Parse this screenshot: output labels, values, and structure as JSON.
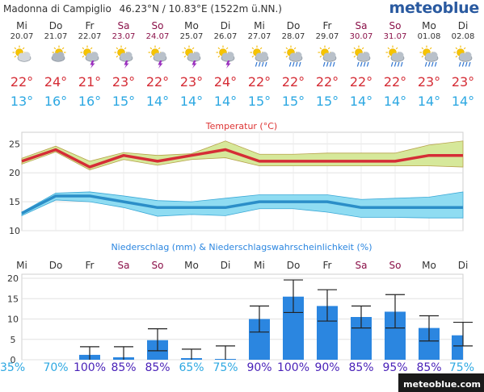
{
  "header": {
    "location": "Madonna di Campiglio",
    "coords": "46.23°N / 10.83°E (1522m ü.NN.)",
    "brand": "meteoblue"
  },
  "days": [
    {
      "dow": "Mi",
      "date": "20.07",
      "weekend": false,
      "icon": "partly-cloudy-sun-icon",
      "tmax": "22°",
      "tmin": "13°",
      "prob": "35%"
    },
    {
      "dow": "Do",
      "date": "21.07",
      "weekend": false,
      "icon": "partly-cloudy-icon",
      "tmax": "24°",
      "tmin": "16°",
      "prob": "70%"
    },
    {
      "dow": "Fr",
      "date": "22.07",
      "weekend": false,
      "icon": "thunderstorm-sun-icon",
      "tmax": "21°",
      "tmin": "16°",
      "prob": "100%"
    },
    {
      "dow": "Sa",
      "date": "23.07",
      "weekend": true,
      "icon": "thunderstorm-sun-icon",
      "tmax": "23°",
      "tmin": "15°",
      "prob": "85%"
    },
    {
      "dow": "So",
      "date": "24.07",
      "weekend": true,
      "icon": "thunderstorm-sun-icon",
      "tmax": "22°",
      "tmin": "14°",
      "prob": "85%"
    },
    {
      "dow": "Mo",
      "date": "25.07",
      "weekend": false,
      "icon": "thunderstorm-sun-icon",
      "tmax": "23°",
      "tmin": "14°",
      "prob": "65%"
    },
    {
      "dow": "Di",
      "date": "26.07",
      "weekend": false,
      "icon": "thunderstorm-sun-icon",
      "tmax": "24°",
      "tmin": "14°",
      "prob": "75%"
    },
    {
      "dow": "Mi",
      "date": "27.07",
      "weekend": false,
      "icon": "rain-shower-sun-icon",
      "tmax": "22°",
      "tmin": "15°",
      "prob": "90%"
    },
    {
      "dow": "Do",
      "date": "28.07",
      "weekend": false,
      "icon": "rain-shower-sun-icon",
      "tmax": "22°",
      "tmin": "15°",
      "prob": "100%"
    },
    {
      "dow": "Fr",
      "date": "29.07",
      "weekend": false,
      "icon": "rain-shower-sun-icon",
      "tmax": "22°",
      "tmin": "15°",
      "prob": "90%"
    },
    {
      "dow": "Sa",
      "date": "30.07",
      "weekend": true,
      "icon": "rain-shower-sun-icon",
      "tmax": "22°",
      "tmin": "14°",
      "prob": "85%"
    },
    {
      "dow": "So",
      "date": "31.07",
      "weekend": true,
      "icon": "rain-shower-sun-icon",
      "tmax": "22°",
      "tmin": "14°",
      "prob": "95%"
    },
    {
      "dow": "Mo",
      "date": "01.08",
      "weekend": false,
      "icon": "rain-shower-sun-icon",
      "tmax": "23°",
      "tmin": "14°",
      "prob": "85%"
    },
    {
      "dow": "Di",
      "date": "02.08",
      "weekend": false,
      "icon": "rain-shower-sun-icon",
      "tmax": "23°",
      "tmin": "14°",
      "prob": "75%"
    }
  ],
  "colors": {
    "weekday": "#333333",
    "weekend": "#8a1048",
    "tmax": "#d52d36",
    "tmin": "#2da8e2",
    "tmax_band": "#d6e89a",
    "tmin_band": "#8fdcf2",
    "tmin_line": "#2b8ec8",
    "precip_bar": "#2b86e0",
    "precip_title": "#2b86e0",
    "prob_low": "#2da8e2",
    "prob_high": "#4a22b8"
  },
  "chart_data": [
    {
      "type": "line",
      "title": "Temperatur (°C)",
      "x": [
        "20.07",
        "21.07",
        "22.07",
        "23.07",
        "24.07",
        "25.07",
        "26.07",
        "27.07",
        "28.07",
        "29.07",
        "30.07",
        "31.07",
        "01.08",
        "02.08"
      ],
      "ylim": [
        10,
        27
      ],
      "yticks": [
        10,
        15,
        20,
        25
      ],
      "grid": true,
      "series": [
        {
          "key": "tmax",
          "values": [
            22,
            24,
            21,
            23,
            22,
            23,
            24,
            22,
            22,
            22,
            22,
            22,
            23,
            23
          ],
          "band_low": [
            21.5,
            23.6,
            20.5,
            22.3,
            21.3,
            22.3,
            22.6,
            21.2,
            21.2,
            21.2,
            21.2,
            21.2,
            21.2,
            21
          ],
          "band_high": [
            22.5,
            24.6,
            22,
            23.5,
            23,
            23.3,
            25.5,
            23.2,
            23.2,
            23.4,
            23.4,
            23.4,
            24.8,
            25.5
          ]
        },
        {
          "key": "tmin",
          "values": [
            13,
            16,
            16,
            15,
            14,
            14,
            14,
            15,
            15,
            15,
            14,
            14,
            14,
            14
          ],
          "band_low": [
            12.6,
            15.3,
            15,
            14,
            12.5,
            12.8,
            12.6,
            13.8,
            13.8,
            13.2,
            12.3,
            12.3,
            12.2,
            12.2
          ],
          "band_high": [
            13.2,
            16.5,
            16.7,
            16,
            15.2,
            15,
            15.6,
            16.2,
            16.2,
            16.2,
            15.4,
            15.6,
            15.8,
            16.7
          ]
        }
      ]
    },
    {
      "type": "bar",
      "title": "Niederschlag (mm) & Niederschlagswahrscheinlichkeit (%)",
      "categories": [
        "Mi",
        "Do",
        "Fr",
        "Sa",
        "So",
        "Mo",
        "Di",
        "Mi",
        "Do",
        "Fr",
        "Sa",
        "So",
        "Mo",
        "Di"
      ],
      "values": [
        0,
        0,
        1.2,
        0.6,
        4.8,
        0.4,
        0.2,
        10,
        15.5,
        13.2,
        10.5,
        11.8,
        7.8,
        6
      ],
      "err_low": [
        0,
        0,
        0,
        0,
        2.2,
        0,
        0,
        6.8,
        11.6,
        9.5,
        7.8,
        7.8,
        4.6,
        3.4
      ],
      "err_high": [
        0,
        0,
        3.2,
        3.2,
        7.6,
        2.6,
        3.4,
        13.2,
        19.6,
        17.2,
        13.2,
        16,
        10.8,
        9.2
      ],
      "probabilities": [
        35,
        70,
        100,
        85,
        85,
        65,
        75,
        90,
        100,
        90,
        85,
        95,
        85,
        75
      ],
      "ylim": [
        0,
        21
      ],
      "yticks": [
        0,
        5,
        10,
        15,
        20
      ],
      "grid": true
    }
  ],
  "footer": {
    "credit": "meteoblue.com"
  }
}
